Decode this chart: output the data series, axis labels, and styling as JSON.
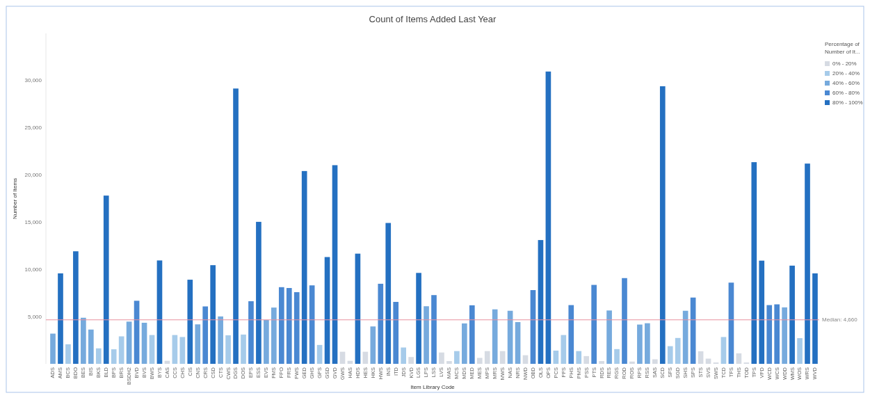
{
  "chart_data": {
    "type": "bar",
    "title": "Count of Items Added Last Year",
    "xlabel": "Item Library Code",
    "ylabel": "Number of Items",
    "legend_title": "Percentage of Number of It...",
    "legend": "top right",
    "categories": [
      "ADS",
      "AMS",
      "BCS",
      "BDO",
      "BES",
      "BIS",
      "BKS",
      "BLD",
      "BPS",
      "BRS",
      "BSDH2",
      "BVD",
      "BVS",
      "BWS",
      "BYS",
      "CAS",
      "CCS",
      "CHS",
      "CIS",
      "CNS",
      "CRS",
      "CSD",
      "CTS",
      "CWS",
      "DGS",
      "DOS",
      "EPS",
      "ESS",
      "EVS",
      "FMS",
      "FPO",
      "FRS",
      "FWS",
      "GED",
      "GHS",
      "GPS",
      "GSD",
      "GVD",
      "GWS",
      "HAS",
      "HDS",
      "HES",
      "HKS",
      "HWS",
      "INS",
      "ITD",
      "JDS",
      "KVD",
      "LGS",
      "LPS",
      "LSS",
      "LVS",
      "MAS",
      "MCS",
      "MDS",
      "MED",
      "MES",
      "MPS",
      "MRS",
      "MWS",
      "NAS",
      "NRS",
      "NWD",
      "OBD",
      "OLS",
      "OPS",
      "PCS",
      "PFS",
      "PHS",
      "PMS",
      "PSS",
      "PTS",
      "RDS",
      "RES",
      "RGS",
      "ROD",
      "ROS",
      "RPS",
      "RSS",
      "SAS",
      "SCD",
      "SFS",
      "SGD",
      "SHS",
      "SPS",
      "STS",
      "SVS",
      "SWS",
      "TCD",
      "TFS",
      "THS",
      "TOD",
      "TPS",
      "VPD",
      "WCD",
      "WCS",
      "WDD",
      "WMS",
      "WOS",
      "WRS",
      "WVD"
    ],
    "series": [
      {
        "name": "0% - 20%",
        "color": "#d6dbe3",
        "values": [
          null,
          null,
          null,
          null,
          null,
          null,
          null,
          null,
          null,
          null,
          null,
          null,
          null,
          null,
          null,
          320,
          null,
          null,
          null,
          null,
          null,
          null,
          null,
          null,
          null,
          null,
          null,
          null,
          null,
          null,
          null,
          null,
          null,
          null,
          null,
          null,
          null,
          null,
          1280,
          320,
          null,
          1280,
          null,
          null,
          null,
          null,
          null,
          720,
          null,
          null,
          null,
          1200,
          290,
          null,
          null,
          null,
          630,
          1350,
          null,
          1350,
          null,
          null,
          910,
          null,
          null,
          null,
          null,
          null,
          null,
          null,
          820,
          null,
          290,
          null,
          null,
          null,
          240,
          null,
          null,
          480,
          null,
          null,
          null,
          null,
          null,
          1330,
          550,
          140,
          null,
          null,
          1110,
          140,
          null,
          null,
          null,
          null,
          null,
          null,
          null,
          null,
          null
        ]
      },
      {
        "name": "20% - 40%",
        "color": "#a6cbea",
        "values": [
          null,
          null,
          2070,
          null,
          null,
          null,
          1640,
          null,
          1540,
          2910,
          null,
          null,
          null,
          3050,
          null,
          null,
          3050,
          2840,
          null,
          null,
          null,
          null,
          null,
          3020,
          null,
          3100,
          null,
          null,
          null,
          null,
          null,
          null,
          null,
          null,
          null,
          2000,
          null,
          null,
          null,
          null,
          null,
          null,
          null,
          null,
          null,
          null,
          1730,
          null,
          null,
          null,
          null,
          null,
          null,
          1350,
          null,
          null,
          null,
          null,
          null,
          null,
          null,
          null,
          null,
          null,
          null,
          null,
          1400,
          3050,
          null,
          1350,
          null,
          null,
          null,
          null,
          1560,
          null,
          null,
          null,
          null,
          null,
          null,
          1870,
          2740,
          null,
          null,
          null,
          null,
          null,
          2840,
          null,
          null,
          null,
          null,
          null,
          null,
          null,
          null,
          null,
          2720,
          null,
          null
        ]
      },
      {
        "name": "40% - 60%",
        "color": "#76aadd",
        "values": [
          3200,
          null,
          null,
          null,
          4880,
          3630,
          null,
          null,
          null,
          null,
          4470,
          null,
          4350,
          null,
          null,
          null,
          null,
          null,
          null,
          4180,
          null,
          null,
          5020,
          null,
          null,
          null,
          null,
          null,
          4640,
          5960,
          null,
          null,
          null,
          null,
          null,
          null,
          null,
          null,
          null,
          null,
          null,
          null,
          3960,
          null,
          null,
          null,
          null,
          null,
          null,
          6100,
          null,
          null,
          null,
          null,
          4280,
          null,
          null,
          null,
          5770,
          null,
          5620,
          4420,
          null,
          null,
          null,
          null,
          null,
          null,
          null,
          null,
          null,
          null,
          null,
          5650,
          null,
          null,
          null,
          4160,
          4300,
          null,
          null,
          null,
          null,
          5620,
          null,
          null,
          null,
          null,
          null,
          null,
          null,
          null,
          null,
          null,
          null,
          null,
          5980,
          null,
          null,
          null,
          null
        ]
      },
      {
        "name": "60% - 80%",
        "color": "#4a88d2",
        "values": [
          null,
          null,
          null,
          null,
          null,
          null,
          null,
          null,
          null,
          null,
          null,
          6680,
          null,
          null,
          null,
          null,
          null,
          null,
          null,
          null,
          6080,
          null,
          null,
          null,
          null,
          null,
          6630,
          null,
          null,
          null,
          8120,
          8030,
          7590,
          null,
          8310,
          null,
          null,
          null,
          null,
          null,
          null,
          null,
          null,
          8480,
          null,
          6560,
          null,
          null,
          null,
          null,
          7280,
          null,
          null,
          null,
          null,
          6200,
          null,
          null,
          null,
          null,
          null,
          null,
          null,
          7810,
          null,
          null,
          null,
          null,
          6220,
          null,
          null,
          8360,
          null,
          null,
          null,
          9080,
          null,
          null,
          null,
          null,
          null,
          null,
          null,
          null,
          7020,
          null,
          null,
          null,
          null,
          8600,
          null,
          null,
          null,
          null,
          6220,
          6300,
          null,
          null,
          null,
          null,
          null
        ]
      },
      {
        "name": "80% - 100%",
        "color": "#2470c1",
        "values": [
          null,
          9580,
          null,
          11920,
          null,
          null,
          null,
          17820,
          null,
          null,
          null,
          null,
          null,
          null,
          10950,
          null,
          null,
          null,
          8910,
          null,
          null,
          10450,
          null,
          null,
          29160,
          null,
          null,
          15040,
          null,
          null,
          null,
          null,
          null,
          20420,
          null,
          null,
          11310,
          21040,
          null,
          null,
          11670,
          null,
          null,
          null,
          14920,
          null,
          null,
          null,
          9630,
          null,
          null,
          null,
          null,
          null,
          null,
          null,
          null,
          null,
          null,
          null,
          null,
          null,
          null,
          null,
          13110,
          30960,
          null,
          null,
          null,
          null,
          null,
          null,
          null,
          null,
          null,
          null,
          null,
          null,
          null,
          null,
          29400,
          null,
          null,
          null,
          null,
          null,
          null,
          null,
          null,
          null,
          null,
          null,
          21360,
          10930,
          null,
          null,
          null,
          10400,
          null,
          21210,
          9580
        ]
      }
    ],
    "ylim": [
      0,
      35000
    ],
    "yticks": [
      {
        "value": 5000,
        "label": "5,000"
      },
      {
        "value": 10000,
        "label": "10,000"
      },
      {
        "value": 15000,
        "label": "15,000"
      },
      {
        "value": 20000,
        "label": "20,000"
      },
      {
        "value": 25000,
        "label": "25,000"
      },
      {
        "value": 30000,
        "label": "30,000"
      }
    ],
    "ref_lines": [
      {
        "axis": "y",
        "value": 4660,
        "label": "Median: 4,660",
        "color": "#e8909e"
      }
    ]
  }
}
